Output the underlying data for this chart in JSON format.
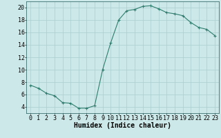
{
  "x": [
    0,
    1,
    2,
    3,
    4,
    5,
    6,
    7,
    8,
    9,
    10,
    11,
    12,
    13,
    14,
    15,
    16,
    17,
    18,
    19,
    20,
    21,
    22,
    23
  ],
  "y": [
    7.5,
    7.0,
    6.2,
    5.8,
    4.7,
    4.6,
    3.8,
    3.8,
    4.2,
    10.0,
    14.3,
    18.0,
    19.5,
    19.7,
    20.2,
    20.3,
    19.8,
    19.2,
    19.0,
    18.7,
    17.6,
    16.8,
    16.5,
    15.5
  ],
  "line_color": "#2e7d6e",
  "marker": "+",
  "marker_color": "#2e7d6e",
  "bg_color": "#cce8e8",
  "grid_color": "#aacece",
  "xlabel": "Humidex (Indice chaleur)",
  "xlabel_fontsize": 7,
  "tick_fontsize": 6,
  "xlim": [
    -0.5,
    23.5
  ],
  "ylim": [
    3.0,
    21.0
  ],
  "yticks": [
    4,
    6,
    8,
    10,
    12,
    14,
    16,
    18,
    20
  ],
  "xticks": [
    0,
    1,
    2,
    3,
    4,
    5,
    6,
    7,
    8,
    9,
    10,
    11,
    12,
    13,
    14,
    15,
    16,
    17,
    18,
    19,
    20,
    21,
    22,
    23
  ]
}
